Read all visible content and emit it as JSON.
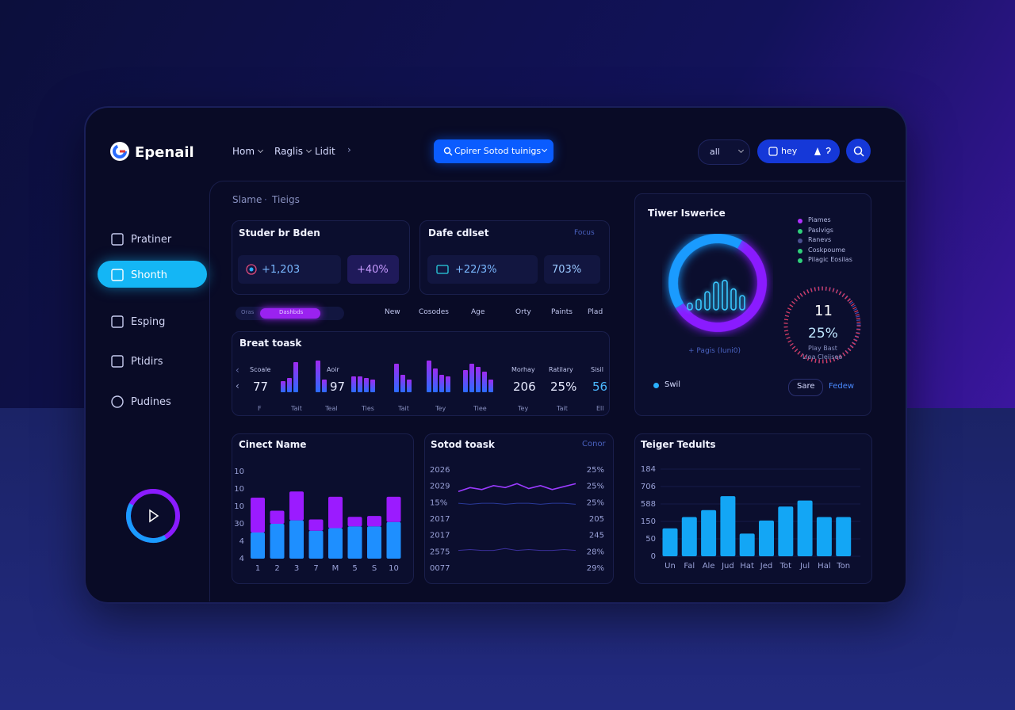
{
  "brand": "Epenail",
  "nav": [
    "Hom",
    "Raglis",
    "Lidit"
  ],
  "search": "Cpirer Sotod tuinigs",
  "language": "all",
  "user": "hey",
  "sidebar": [
    "Pratiner",
    "Shonth",
    "Esping",
    "Ptidirs",
    "Pudines"
  ],
  "breadcrumb": [
    "Slame",
    "Tieigs"
  ],
  "cards": [
    {
      "title": "Studer br Bden",
      "stats": [
        "+1,203",
        "+40%"
      ]
    },
    {
      "title": "Dafe cdlset",
      "filter": "Focus",
      "stats": [
        "+22/3%",
        "703%"
      ]
    }
  ],
  "tabs": {
    "items": [
      "Oras",
      "Dashbds"
    ],
    "columns": [
      "New",
      "Cosodes",
      "Age",
      "Orty",
      "Paints",
      "Plad"
    ]
  },
  "activity": {
    "title": "Breat toask",
    "metrics": [
      {
        "label": "Scoale",
        "value": 77
      },
      {
        "label": "Aoir",
        "value": 97
      },
      {
        "label": "Morhay",
        "value": 206
      },
      {
        "label": "Ratilary",
        "value": "25%"
      },
      {
        "label": "Sisil",
        "value": 56
      }
    ],
    "x_labels": [
      "F",
      "Tait",
      "Teal",
      "Ties",
      "Tait",
      "Tey",
      "Tiee",
      "Tey",
      "Tait",
      "Ell"
    ],
    "chart_data": {
      "type": "bar",
      "ylim": [
        0,
        100
      ],
      "groups": [
        [
          35,
          45,
          95
        ],
        [
          100,
          40
        ],
        [
          50,
          50,
          45,
          40
        ],
        [
          90,
          55,
          40
        ],
        [
          100,
          75,
          55,
          50
        ],
        [
          70,
          90,
          80,
          65,
          40
        ]
      ]
    }
  },
  "insight": {
    "title": "Tiwer Iswerice",
    "legend": [
      {
        "label": "Piames",
        "color": "#b030ff"
      },
      {
        "label": "Paslvigs",
        "color": "#2fd07a"
      },
      {
        "label": "Ranevs",
        "color": "#4a4f90"
      },
      {
        "label": "Coskpoume",
        "color": "#2fd07a"
      },
      {
        "label": "Pilagic Eosilas",
        "color": "#2fd07a"
      }
    ],
    "caption": "+ Pagis (Iuni0)",
    "gauge": {
      "value": "11",
      "percent": "25%",
      "lines": [
        "Play Bast",
        "Lloa Cleiisee"
      ]
    },
    "status": "Swil",
    "buttons": [
      "Sare",
      "Fedew"
    ]
  },
  "ring": {
    "chart_data": {
      "type": "donut",
      "values": [
        58,
        42
      ],
      "colors": [
        "#8a1bff",
        "#1a9bff"
      ],
      "bars": [
        14,
        22,
        38,
        58,
        62,
        44,
        30
      ]
    }
  },
  "charts": [
    {
      "title": "Cinect Name",
      "chart_data": {
        "type": "stacked_bar",
        "categories": [
          "1",
          "2",
          "3",
          "7",
          "M",
          "5",
          "S",
          "10"
        ],
        "series": [
          {
            "color": "#1e8fff",
            "values": [
              30,
              40,
              44,
              32,
              35,
              37,
              37,
              42
            ]
          },
          {
            "color": "#9b1bff",
            "values": [
              40,
              15,
              33,
              13,
              36,
              11,
              12,
              29
            ]
          }
        ],
        "ylim": [
          0,
          100
        ],
        "axis_labels": [
          "10",
          "10",
          "10",
          "30",
          "4",
          "4"
        ]
      }
    },
    {
      "title": "Sotod toask",
      "link": "Conor",
      "chart_data": {
        "type": "line",
        "series": [
          {
            "color": "#9b3bff",
            "values": [
              78,
              82,
              80,
              84,
              82,
              86,
              81,
              84,
              80,
              83,
              86
            ]
          },
          {
            "color": "#2a3a9a",
            "values": [
              66,
              65,
              66,
              66,
              65,
              66,
              66,
              65,
              66,
              66,
              65
            ]
          },
          {
            "color": "#3a2f9a",
            "values": [
              18,
              19,
              18,
              18,
              20,
              18,
              19,
              18,
              18,
              19,
              18
            ]
          }
        ],
        "ylim": [
          0,
          100
        ],
        "left_labels": [
          "2026",
          "2029",
          "15%",
          "2017",
          "2017",
          "2575",
          "0077"
        ],
        "right_labels": [
          "25%",
          "25%",
          "25%",
          "205",
          "245",
          "28%",
          "29%"
        ]
      }
    },
    {
      "title": "Teiger Tedults",
      "chart_data": {
        "type": "bar",
        "categories": [
          "Un",
          "Fal",
          "Ale",
          "Jud",
          "Hat",
          "Jed",
          "Tot",
          "Jul",
          "Hal",
          "Ton"
        ],
        "values": [
          32,
          45,
          53,
          69,
          26,
          41,
          57,
          64,
          45,
          45
        ],
        "color": "#13a6f5",
        "ylim": [
          0,
          100
        ],
        "axis_labels": [
          "184",
          "706",
          "588",
          "150",
          "50",
          "0"
        ]
      }
    }
  ]
}
